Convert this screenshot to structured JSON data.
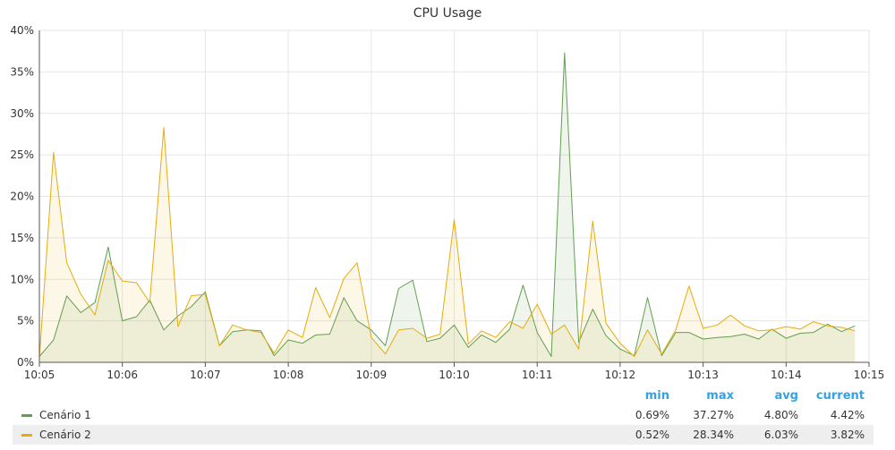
{
  "colors": {
    "series1": "#629e51",
    "series2": "#e5ac0e",
    "grid": "#e6e6e6",
    "axis": "#555555",
    "header": "#33a2e5"
  },
  "legend": {
    "headers": [
      "min",
      "max",
      "avg",
      "current"
    ],
    "rows": [
      {
        "name": "Cenário 1",
        "min": "0.69%",
        "max": "37.27%",
        "avg": "4.80%",
        "current": "4.42%"
      },
      {
        "name": "Cenário 2",
        "min": "0.52%",
        "max": "28.34%",
        "avg": "6.03%",
        "current": "3.82%"
      }
    ]
  },
  "chart_data": {
    "type": "area",
    "title": "CPU Usage",
    "xlabel": "",
    "ylabel": "",
    "x_ticks": [
      "10:05",
      "10:06",
      "10:07",
      "10:08",
      "10:09",
      "10:10",
      "10:11",
      "10:12",
      "10:13",
      "10:14",
      "10:15"
    ],
    "y_ticks": [
      "0%",
      "5%",
      "10%",
      "15%",
      "20%",
      "25%",
      "30%",
      "35%",
      "40%"
    ],
    "ylim": [
      0,
      40
    ],
    "xlim_minutes": [
      0,
      10
    ],
    "grid": true,
    "legend_position": "bottom",
    "x_minutes": [
      0.0,
      0.17,
      0.33,
      0.5,
      0.67,
      0.83,
      1.0,
      1.17,
      1.33,
      1.5,
      1.67,
      1.83,
      2.0,
      2.17,
      2.33,
      2.5,
      2.67,
      2.83,
      3.0,
      3.17,
      3.33,
      3.5,
      3.67,
      3.83,
      4.0,
      4.17,
      4.33,
      4.5,
      4.67,
      4.83,
      5.0,
      5.17,
      5.33,
      5.5,
      5.67,
      5.83,
      6.0,
      6.17,
      6.33,
      6.5,
      6.67,
      6.83,
      7.0,
      7.17,
      7.33,
      7.5,
      7.67,
      7.83,
      8.0,
      8.17,
      8.33,
      8.5,
      8.67,
      8.83,
      9.0,
      9.17,
      9.33,
      9.5,
      9.67,
      9.83
    ],
    "series": [
      {
        "name": "Cenário 1",
        "values": [
          0.7,
          2.7,
          8.0,
          6.0,
          7.2,
          13.9,
          5.0,
          5.5,
          7.5,
          3.9,
          5.6,
          6.7,
          8.5,
          2.0,
          3.7,
          3.9,
          3.8,
          0.8,
          2.7,
          2.3,
          3.3,
          3.4,
          7.8,
          5.0,
          3.9,
          2.0,
          8.9,
          9.9,
          2.5,
          2.9,
          4.5,
          1.8,
          3.3,
          2.4,
          4.0,
          9.3,
          3.6,
          0.7,
          37.3,
          2.4,
          6.4,
          3.2,
          1.6,
          0.8,
          7.8,
          0.8,
          3.6,
          3.6,
          2.8,
          3.0,
          3.1,
          3.4,
          2.8,
          4.0,
          2.9,
          3.5,
          3.6,
          4.6,
          3.7,
          4.4
        ]
      },
      {
        "name": "Cenário 2",
        "values": [
          0.5,
          25.3,
          12.0,
          8.2,
          5.7,
          12.3,
          9.8,
          9.6,
          7.2,
          28.3,
          4.3,
          8.0,
          8.2,
          2.0,
          4.5,
          3.9,
          3.6,
          1.1,
          3.9,
          3.0,
          9.0,
          5.4,
          10.1,
          12.0,
          3.0,
          1.0,
          3.9,
          4.1,
          2.9,
          3.4,
          17.2,
          2.2,
          3.8,
          3.0,
          4.9,
          4.1,
          7.0,
          3.4,
          4.5,
          1.6,
          17.0,
          4.7,
          2.3,
          0.7,
          3.9,
          1.0,
          3.9,
          9.2,
          4.1,
          4.5,
          5.7,
          4.4,
          3.8,
          3.9,
          4.3,
          4.0,
          4.9,
          4.4,
          4.2,
          3.8
        ]
      }
    ]
  }
}
